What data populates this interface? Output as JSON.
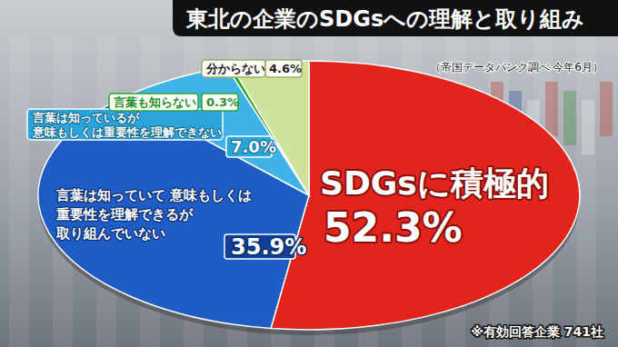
{
  "chart_data": {
    "type": "pie",
    "title": "東北の企業のSDGsへの理解と取り組み",
    "subtitle": "（帝国データバンク調べ 今年6月）",
    "annotations": [
      "※有効回答企業 741社"
    ],
    "categories": [
      "SDGsに積極的",
      "言葉は知っていて 意味もしくは\n重要性を理解できるが\n取り組んでいない",
      "言葉は知っているが\n意味もしくは重要性を理解できない",
      "言葉も知らない",
      "分からない"
    ],
    "values": [
      52.3,
      35.9,
      7.0,
      0.3,
      4.6
    ],
    "value_labels": [
      "52.3%",
      "35.9%",
      "7.0%",
      "0.3%",
      "4.6%"
    ],
    "colors": [
      "#e3241c",
      "#1e5cc6",
      "#3fb3e8",
      "#2aa52a",
      "#cfe29a"
    ],
    "data_labels": true
  }
}
